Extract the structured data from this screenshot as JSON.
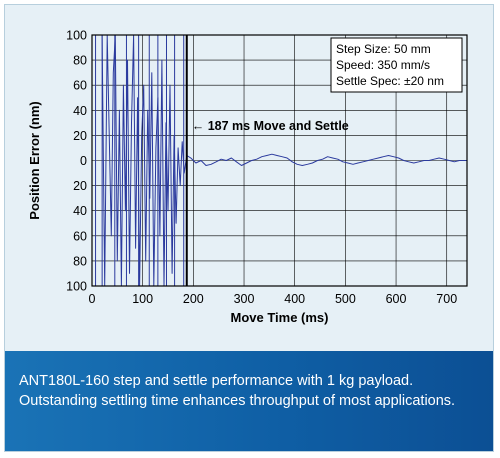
{
  "chart_data": {
    "type": "line",
    "title": "",
    "xlabel": "Move Time (ms)",
    "ylabel": "Position Error (nm)",
    "xlim": [
      0,
      740
    ],
    "ylim": [
      -100,
      100
    ],
    "x_ticks": [
      0,
      100,
      200,
      300,
      400,
      500,
      600,
      700
    ],
    "y_ticks": [
      100,
      80,
      60,
      40,
      20,
      0,
      -20,
      -40,
      -60,
      -80,
      -100
    ],
    "y_tick_labels": [
      "100",
      "80",
      "60",
      "40",
      "20",
      "0",
      "20",
      "40",
      "60",
      "80",
      "100"
    ],
    "grid": true,
    "series": [
      {
        "color": "#2b3a9e",
        "x": [
          0,
          20,
          25,
          30,
          38,
          42,
          46,
          50,
          54,
          58,
          62,
          66,
          70,
          74,
          78,
          82,
          86,
          90,
          94,
          98,
          102,
          106,
          110,
          114,
          118,
          122,
          126,
          130,
          134,
          138,
          142,
          146,
          150,
          154,
          158,
          162,
          166,
          170,
          174,
          178,
          182,
          187,
          195,
          205,
          215,
          225,
          235,
          245,
          255,
          265,
          275,
          285,
          295,
          305,
          315,
          325,
          335,
          345,
          355,
          365,
          375,
          385,
          395,
          405,
          415,
          425,
          435,
          445,
          455,
          465,
          475,
          485,
          495,
          505,
          515,
          525,
          535,
          545,
          555,
          565,
          575,
          585,
          595,
          605,
          615,
          625,
          635,
          645,
          655,
          665,
          675,
          685,
          695,
          705,
          715,
          725,
          740
        ],
        "y": [
          100,
          100,
          -100,
          100,
          -60,
          70,
          100,
          -80,
          40,
          -100,
          60,
          -40,
          80,
          -90,
          30,
          100,
          -70,
          50,
          -100,
          20,
          60,
          -80,
          40,
          -30,
          70,
          -100,
          10,
          50,
          -60,
          80,
          -100,
          30,
          -40,
          60,
          -90,
          20,
          -50,
          10,
          -20,
          15,
          -10,
          4,
          2,
          -2,
          0,
          -4,
          -3,
          -1,
          1,
          0,
          2,
          -1,
          -4,
          -2,
          0,
          1,
          3,
          4,
          5,
          4,
          3,
          2,
          -1,
          -3,
          -4,
          -3,
          -2,
          0,
          1,
          3,
          2,
          1,
          -1,
          -2,
          -3,
          -2,
          -1,
          0,
          1,
          2,
          3,
          4,
          3,
          2,
          0,
          -1,
          -2,
          -1,
          0,
          0,
          1,
          2,
          1,
          0,
          -1,
          0,
          0
        ]
      }
    ],
    "vertical_lines_x": [
      7,
      20,
      45,
      68,
      92,
      113,
      130,
      147,
      163,
      181
    ],
    "settle_line_x": 187,
    "annotation": "← 187 ms Move and Settle",
    "legend_box": [
      "Step Size: 50 mm",
      "Speed: 350 mm/s",
      "Settle Spec: ±20 nm"
    ],
    "legend_placement": "top-right"
  },
  "caption": {
    "line1": "ANT180L-160 step and settle performance with 1 kg payload.",
    "line2": "Outstanding settling time enhances throughput of most applications."
  }
}
